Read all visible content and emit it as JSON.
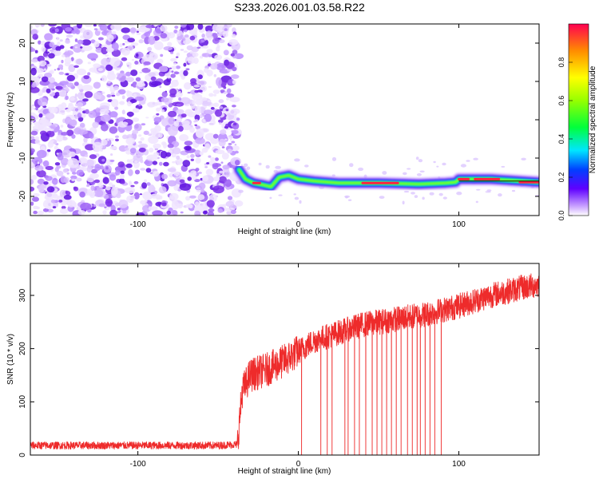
{
  "title": "S233.2026.001.03.58.R22",
  "colors": {
    "snr_line": "#ee2b2b",
    "frame": "#000000",
    "scatter_purple": "#7a2ee8"
  },
  "chart_data": [
    {
      "type": "heatmap",
      "xlabel": "Height of straight line (km)",
      "ylabel": "Frequency (Hz)",
      "xlim": [
        -167,
        150
      ],
      "ylim": [
        -25,
        25
      ],
      "xticks": [
        -100,
        0,
        100
      ],
      "yticks": [
        -20,
        -10,
        0,
        10,
        20
      ],
      "colorbar": {
        "label": "Normalized spectral amplitude",
        "range": [
          0,
          1
        ],
        "ticks": [
          0.0,
          0.2,
          0.4,
          0.6,
          0.8
        ]
      },
      "noise_region_x": [
        -167,
        -37
      ],
      "signal_trace": [
        {
          "x": -37,
          "y": -13
        },
        {
          "x": -33,
          "y": -15.5
        },
        {
          "x": -28,
          "y": -16.5
        },
        {
          "x": -22,
          "y": -17
        },
        {
          "x": -17,
          "y": -17.5
        },
        {
          "x": -12,
          "y": -15
        },
        {
          "x": -6,
          "y": -14.5
        },
        {
          "x": 0,
          "y": -15.5
        },
        {
          "x": 10,
          "y": -16
        },
        {
          "x": 25,
          "y": -16.5
        },
        {
          "x": 50,
          "y": -16.5
        },
        {
          "x": 75,
          "y": -16.8
        },
        {
          "x": 92,
          "y": -16.5
        },
        {
          "x": 98,
          "y": -16.3
        },
        {
          "x": 100,
          "y": -15.5
        },
        {
          "x": 120,
          "y": -15.5
        },
        {
          "x": 150,
          "y": -16.3
        }
      ]
    },
    {
      "type": "line",
      "xlabel": "Height of straight line (km)",
      "ylabel": "SNR (10 * v/v)",
      "xlim": [
        -167,
        150
      ],
      "ylim": [
        0,
        360
      ],
      "xticks": [
        -100,
        0,
        100
      ],
      "yticks": [
        0,
        100,
        200,
        300
      ],
      "series": [
        {
          "x": [
            -167,
            -140,
            -110,
            -80,
            -50,
            -38,
            -35,
            -30,
            -25,
            -20,
            -10,
            0,
            10,
            20,
            30,
            40,
            60,
            80,
            100,
            120,
            140,
            150
          ],
          "y": [
            18,
            18,
            18,
            18,
            18,
            20,
            120,
            150,
            155,
            160,
            175,
            195,
            215,
            225,
            235,
            245,
            255,
            265,
            280,
            300,
            315,
            320
          ]
        }
      ],
      "dropouts_x": [
        2,
        14,
        18,
        21,
        29,
        31,
        35,
        38,
        42,
        46,
        49,
        52,
        55,
        58,
        61,
        64,
        68,
        71,
        74,
        76,
        79,
        82,
        85,
        89
      ]
    }
  ]
}
